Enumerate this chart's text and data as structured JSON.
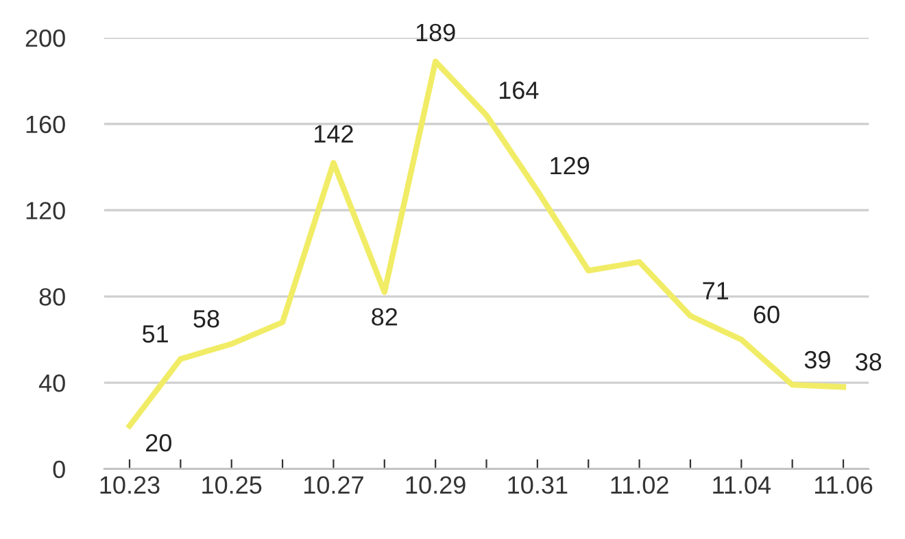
{
  "chart_data": {
    "type": "line",
    "categories": [
      "10.23",
      null,
      "10.25",
      null,
      "10.27",
      null,
      "10.29",
      null,
      "10.31",
      null,
      "11.02",
      null,
      "11.04",
      null,
      "11.06"
    ],
    "series": [
      {
        "color": "#f1ec66",
        "values": [
          20,
          51,
          58,
          68,
          142,
          82,
          189,
          164,
          129,
          92,
          96,
          71,
          60,
          39,
          38
        ],
        "value_labels": [
          "20",
          "51",
          "58",
          null,
          "142",
          "82",
          "189",
          "164",
          "129",
          null,
          null,
          "71",
          "60",
          "39",
          "38"
        ]
      }
    ],
    "ylim": [
      0,
      200
    ],
    "yticks": [
      0,
      40,
      80,
      120,
      160,
      200
    ],
    "grid": "y",
    "marker": "none",
    "line_style": "solid"
  }
}
